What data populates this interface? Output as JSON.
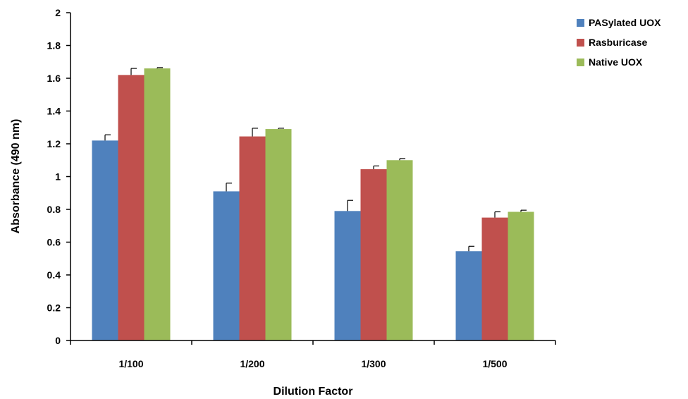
{
  "chart_data": {
    "type": "bar",
    "title": "",
    "xlabel": "Dilution Factor",
    "ylabel": "Absorbance (490 nm)",
    "ylim": [
      0,
      2
    ],
    "yticks": [
      "0",
      "0.2",
      "0.4",
      "0.6",
      "0.8",
      "1",
      "1.2",
      "1.4",
      "1.6",
      "1.8",
      "2"
    ],
    "categories": [
      "1/100",
      "1/200",
      "1/300",
      "1/500"
    ],
    "grid": false,
    "legend_position": "top-right",
    "series": [
      {
        "name": "PASylated UOX",
        "color": "#4F81BD",
        "values": [
          1.22,
          0.91,
          0.79,
          0.545
        ],
        "errors": [
          0.035,
          0.05,
          0.065,
          0.03
        ]
      },
      {
        "name": "Rasburicase",
        "color": "#C0504D",
        "values": [
          1.62,
          1.245,
          1.045,
          0.75
        ],
        "errors": [
          0.04,
          0.05,
          0.02,
          0.035
        ]
      },
      {
        "name": "Native UOX",
        "color": "#9BBB59",
        "values": [
          1.66,
          1.29,
          1.1,
          0.785
        ],
        "errors": [
          0.005,
          0.005,
          0.01,
          0.01
        ]
      }
    ]
  }
}
